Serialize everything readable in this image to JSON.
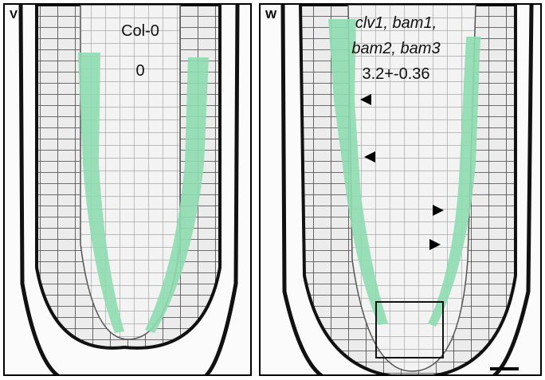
{
  "panels": {
    "v": {
      "letter": "V",
      "genotype": "Col-0",
      "count": "0"
    },
    "w": {
      "letter": "W",
      "genotype_line1": "clv1, bam1,",
      "genotype_line2": "bam2, bam3",
      "count": "3.2+-0.36"
    }
  },
  "colors": {
    "highlight": "#8edbb0",
    "cell_wall": "#222222",
    "background": "#ffffff"
  },
  "markers": {
    "arrowheads": 4,
    "inset_box": true,
    "scale_bar": true
  }
}
